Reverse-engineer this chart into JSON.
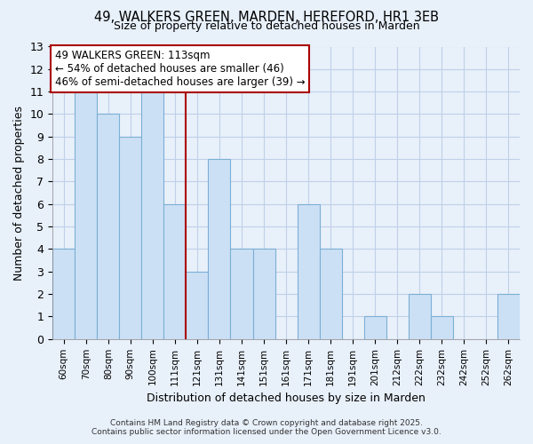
{
  "title": "49, WALKERS GREEN, MARDEN, HEREFORD, HR1 3EB",
  "subtitle": "Size of property relative to detached houses in Marden",
  "xlabel": "Distribution of detached houses by size in Marden",
  "ylabel": "Number of detached properties",
  "categories": [
    "60sqm",
    "70sqm",
    "80sqm",
    "90sqm",
    "100sqm",
    "111sqm",
    "121sqm",
    "131sqm",
    "141sqm",
    "151sqm",
    "161sqm",
    "171sqm",
    "181sqm",
    "191sqm",
    "201sqm",
    "212sqm",
    "222sqm",
    "232sqm",
    "242sqm",
    "252sqm",
    "262sqm"
  ],
  "values": [
    4,
    11,
    10,
    9,
    11,
    6,
    3,
    8,
    4,
    4,
    0,
    6,
    4,
    0,
    1,
    0,
    2,
    1,
    0,
    0,
    2
  ],
  "bar_color": "#cce0f5",
  "bar_edgecolor": "#7bafd4",
  "highlight_index": 5,
  "highlight_line_color": "#aa0000",
  "ylim": [
    0,
    13
  ],
  "yticks": [
    0,
    1,
    2,
    3,
    4,
    5,
    6,
    7,
    8,
    9,
    10,
    11,
    12,
    13
  ],
  "annotation_title": "49 WALKERS GREEN: 113sqm",
  "annotation_line1": "← 54% of detached houses are smaller (46)",
  "annotation_line2": "46% of semi-detached houses are larger (39) →",
  "annotation_box_color": "#ffffff",
  "annotation_box_edgecolor": "#aa0000",
  "grid_color": "#c0d0e8",
  "background_color": "#e8f0fa",
  "footer_line1": "Contains HM Land Registry data © Crown copyright and database right 2025.",
  "footer_line2": "Contains public sector information licensed under the Open Government Licence v3.0."
}
